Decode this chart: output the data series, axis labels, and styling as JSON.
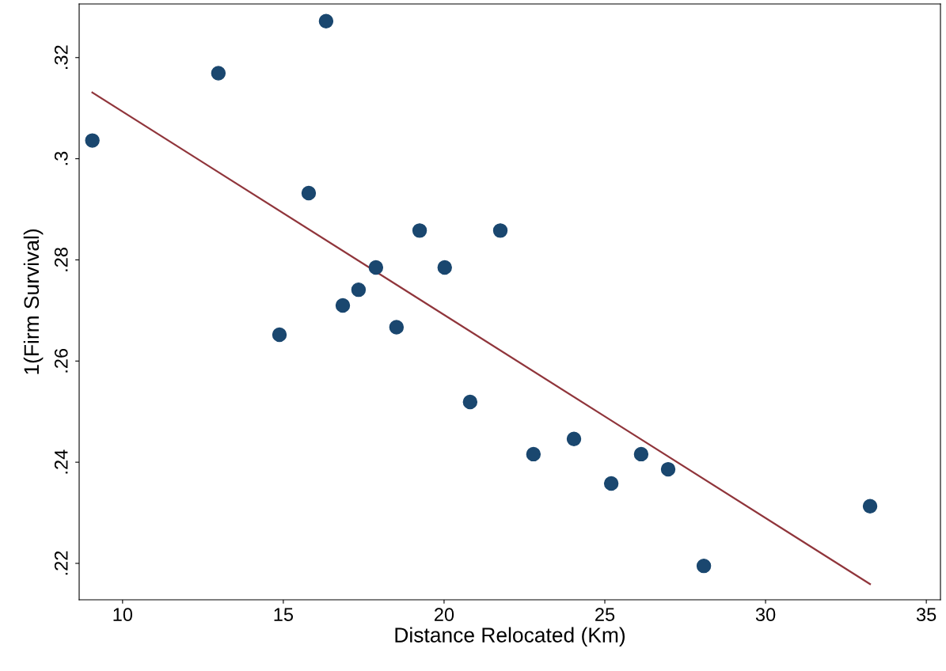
{
  "chart_data": {
    "type": "scatter",
    "xlabel": "Distance Relocated (Km)",
    "ylabel": "1(Firm Survival)",
    "xlim": [
      8.65,
      35.44
    ],
    "ylim": [
      0.2128,
      0.3306
    ],
    "xticks": [
      10,
      15,
      20,
      25,
      30,
      35
    ],
    "yticks": [
      {
        "value": 0.22,
        "label": ".22"
      },
      {
        "value": 0.24,
        "label": ".24"
      },
      {
        "value": 0.26,
        "label": ".26"
      },
      {
        "value": 0.28,
        "label": ".28"
      },
      {
        "value": 0.3,
        "label": ".3"
      },
      {
        "value": 0.32,
        "label": ".32"
      }
    ],
    "grid": false,
    "legend": false,
    "series": [
      {
        "color": "#1a476f",
        "marker": "circle",
        "x": [
          9.06,
          12.98,
          16.33,
          14.88,
          15.79,
          16.85,
          17.34,
          17.88,
          18.52,
          19.24,
          20.02,
          21.75,
          20.81,
          22.78,
          24.04,
          25.2,
          26.13,
          26.97,
          28.08,
          33.25
        ],
        "values": [
          0.3036,
          0.3169,
          0.3272,
          0.2652,
          0.2932,
          0.271,
          0.2741,
          0.2785,
          0.2667,
          0.2858,
          0.2785,
          0.2858,
          0.2519,
          0.2416,
          0.2446,
          0.2358,
          0.2416,
          0.2386,
          0.2195,
          0.2313
        ]
      },
      {
        "type": "line",
        "color": "#90353b",
        "marker": "none",
        "x": [
          9.06,
          33.25
        ],
        "values": [
          0.3131,
          0.2159
        ]
      }
    ]
  }
}
